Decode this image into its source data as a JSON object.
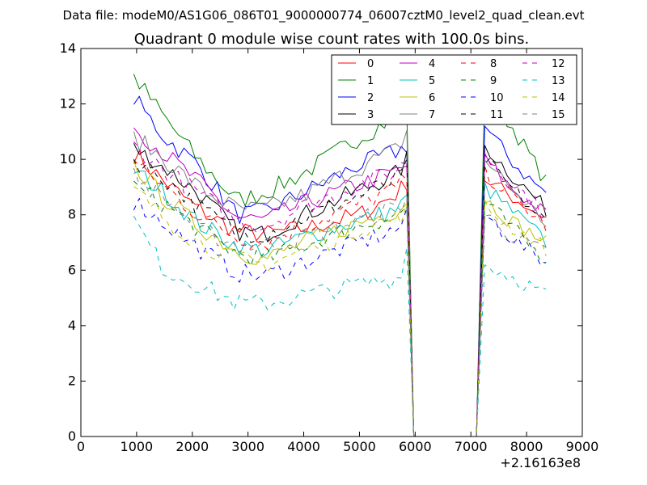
{
  "file_title": "Data file: modeM0/AS1G06_086T01_9000000774_06007cztM0_level2_quad_clean.evt",
  "chart_data": {
    "type": "line",
    "title": "Quadrant 0 module wise count rates with 100.0s bins.",
    "xlabel": "",
    "ylabel": "",
    "x_offset_label": "+2.16163e8",
    "xlim": [
      0,
      9000
    ],
    "ylim": [
      0,
      14
    ],
    "xticks": [
      0,
      1000,
      2000,
      3000,
      4000,
      5000,
      6000,
      7000,
      8000,
      9000
    ],
    "yticks": [
      0,
      2,
      4,
      6,
      8,
      10,
      12,
      14
    ],
    "gap": [
      6000,
      7100
    ],
    "segment1_x": [
      950,
      1050,
      1150,
      1250,
      1350,
      1450,
      1550,
      1650,
      1750,
      1850,
      1950,
      2050,
      2150,
      2250,
      2350,
      2450,
      2550,
      2650,
      2750,
      2850,
      2950,
      3050,
      3150,
      3250,
      3350,
      3450,
      3550,
      3650,
      3750,
      3850,
      3950,
      4050,
      4150,
      4250,
      4350,
      4450,
      4550,
      4650,
      4750,
      4850,
      4950,
      5050,
      5150,
      5250,
      5350,
      5450,
      5550,
      5650,
      5750,
      5850
    ],
    "segment2_x": [
      7250,
      7350,
      7450,
      7550,
      7650,
      7750,
      7850,
      7950,
      8050,
      8150,
      8250,
      8350
    ],
    "series": [
      {
        "name": "0",
        "color": "#ff0000",
        "dash": "solid",
        "anchors1": [
          [
            950,
            10.2
          ],
          [
            1500,
            9.2
          ],
          [
            2100,
            8.2
          ],
          [
            2800,
            7.4
          ],
          [
            3300,
            7.3
          ],
          [
            4000,
            7.5
          ],
          [
            5000,
            8.0
          ],
          [
            5700,
            8.8
          ],
          [
            5850,
            9.2
          ]
        ],
        "anchors2": [
          [
            7250,
            9.3
          ],
          [
            7700,
            8.7
          ],
          [
            8100,
            8.2
          ],
          [
            8350,
            7.9
          ]
        ]
      },
      {
        "name": "1",
        "color": "#008000",
        "dash": "solid",
        "anchors1": [
          [
            950,
            13.0
          ],
          [
            1500,
            11.5
          ],
          [
            2100,
            10.0
          ],
          [
            2800,
            8.5
          ],
          [
            3300,
            8.8
          ],
          [
            4000,
            9.5
          ],
          [
            5000,
            10.8
          ],
          [
            5700,
            11.6
          ],
          [
            5850,
            12.0
          ]
        ],
        "anchors2": [
          [
            7250,
            12.3
          ],
          [
            7700,
            11.3
          ],
          [
            8100,
            10.0
          ],
          [
            8350,
            9.2
          ]
        ]
      },
      {
        "name": "2",
        "color": "#0000ff",
        "dash": "solid",
        "anchors1": [
          [
            950,
            12.2
          ],
          [
            1500,
            10.8
          ],
          [
            2100,
            9.8
          ],
          [
            2800,
            8.0
          ],
          [
            3300,
            8.1
          ],
          [
            4000,
            8.8
          ],
          [
            5000,
            9.8
          ],
          [
            5700,
            10.3
          ],
          [
            5850,
            10.5
          ]
        ],
        "anchors2": [
          [
            7250,
            11.2
          ],
          [
            7700,
            10.0
          ],
          [
            8100,
            9.2
          ],
          [
            8350,
            8.8
          ]
        ]
      },
      {
        "name": "3",
        "color": "#000000",
        "dash": "solid",
        "anchors1": [
          [
            950,
            10.4
          ],
          [
            1500,
            9.7
          ],
          [
            2100,
            8.8
          ],
          [
            2800,
            7.4
          ],
          [
            3300,
            7.3
          ],
          [
            4000,
            8.0
          ],
          [
            5000,
            8.9
          ],
          [
            5700,
            9.5
          ],
          [
            5850,
            10.0
          ]
        ],
        "anchors2": [
          [
            7250,
            10.5
          ],
          [
            7700,
            9.5
          ],
          [
            8100,
            8.7
          ],
          [
            8350,
            8.2
          ]
        ]
      },
      {
        "name": "4",
        "color": "#bf00bf",
        "dash": "solid",
        "anchors1": [
          [
            950,
            11.2
          ],
          [
            1500,
            10.2
          ],
          [
            2100,
            9.2
          ],
          [
            2800,
            7.9
          ],
          [
            3300,
            7.8
          ],
          [
            4000,
            8.4
          ],
          [
            5000,
            9.1
          ],
          [
            5700,
            9.6
          ],
          [
            5850,
            9.8
          ]
        ],
        "anchors2": [
          [
            7250,
            10.0
          ],
          [
            7700,
            9.0
          ],
          [
            8100,
            8.4
          ],
          [
            8350,
            8.0
          ]
        ]
      },
      {
        "name": "5",
        "color": "#00bfbf",
        "dash": "solid",
        "anchors1": [
          [
            950,
            9.6
          ],
          [
            1500,
            8.8
          ],
          [
            2100,
            7.7
          ],
          [
            2800,
            6.9
          ],
          [
            3300,
            6.7
          ],
          [
            4000,
            7.2
          ],
          [
            5000,
            7.8
          ],
          [
            5700,
            8.2
          ],
          [
            5850,
            8.6
          ]
        ],
        "anchors2": [
          [
            7250,
            9.0
          ],
          [
            7700,
            8.2
          ],
          [
            8100,
            7.5
          ],
          [
            8350,
            7.0
          ]
        ]
      },
      {
        "name": "6",
        "color": "#bfbf00",
        "dash": "solid",
        "anchors1": [
          [
            950,
            9.8
          ],
          [
            1500,
            8.6
          ],
          [
            2100,
            7.6
          ],
          [
            2800,
            6.7
          ],
          [
            3300,
            6.4
          ],
          [
            4000,
            7.0
          ],
          [
            5000,
            7.7
          ],
          [
            5700,
            8.2
          ],
          [
            5850,
            8.5
          ]
        ],
        "anchors2": [
          [
            7250,
            8.6
          ],
          [
            7700,
            7.8
          ],
          [
            8100,
            7.3
          ],
          [
            8350,
            7.0
          ]
        ]
      },
      {
        "name": "7",
        "color": "#808080",
        "dash": "solid",
        "anchors1": [
          [
            950,
            10.8
          ],
          [
            1500,
            10.0
          ],
          [
            2100,
            9.0
          ],
          [
            2800,
            8.2
          ],
          [
            3300,
            8.2
          ],
          [
            4000,
            8.7
          ],
          [
            5000,
            9.7
          ],
          [
            5700,
            10.4
          ],
          [
            5850,
            11.0
          ]
        ],
        "anchors2": [
          [
            7250,
            10.0
          ],
          [
            7700,
            9.0
          ],
          [
            8100,
            8.2
          ],
          [
            8350,
            7.7
          ]
        ]
      },
      {
        "name": "8",
        "color": "#ff0000",
        "dash": "dashed",
        "anchors1": [
          [
            950,
            9.9
          ],
          [
            1500,
            9.0
          ],
          [
            2100,
            8.0
          ],
          [
            2800,
            7.2
          ],
          [
            3300,
            7.0
          ],
          [
            4000,
            7.6
          ],
          [
            5000,
            8.4
          ],
          [
            5700,
            9.0
          ],
          [
            5850,
            9.4
          ]
        ],
        "anchors2": [
          [
            7250,
            9.5
          ],
          [
            7700,
            8.7
          ],
          [
            8100,
            8.0
          ],
          [
            8350,
            7.6
          ]
        ]
      },
      {
        "name": "9",
        "color": "#008000",
        "dash": "dashed",
        "anchors1": [
          [
            950,
            9.0
          ],
          [
            1500,
            8.4
          ],
          [
            2100,
            7.5
          ],
          [
            2800,
            6.6
          ],
          [
            3300,
            6.4
          ],
          [
            4000,
            6.9
          ],
          [
            5000,
            7.6
          ],
          [
            5700,
            8.0
          ],
          [
            5850,
            8.3
          ]
        ],
        "anchors2": [
          [
            7250,
            8.5
          ],
          [
            7700,
            7.6
          ],
          [
            8100,
            6.8
          ],
          [
            8350,
            6.4
          ]
        ]
      },
      {
        "name": "10",
        "color": "#0000ff",
        "dash": "dashed",
        "anchors1": [
          [
            950,
            8.5
          ],
          [
            1500,
            7.7
          ],
          [
            2100,
            6.8
          ],
          [
            2800,
            5.9
          ],
          [
            3300,
            5.8
          ],
          [
            4000,
            6.3
          ],
          [
            5000,
            7.0
          ],
          [
            5700,
            7.5
          ],
          [
            5850,
            7.9
          ]
        ],
        "anchors2": [
          [
            7250,
            8.0
          ],
          [
            7700,
            7.2
          ],
          [
            8100,
            6.6
          ],
          [
            8350,
            6.3
          ]
        ]
      },
      {
        "name": "11",
        "color": "#000000",
        "dash": "dashed",
        "anchors1": [
          [
            950,
            10.0
          ],
          [
            1500,
            9.3
          ],
          [
            2100,
            8.3
          ],
          [
            2800,
            7.4
          ],
          [
            3300,
            7.3
          ],
          [
            4000,
            7.9
          ],
          [
            5000,
            8.7
          ],
          [
            5700,
            9.3
          ],
          [
            5850,
            9.7
          ]
        ],
        "anchors2": [
          [
            7250,
            10.0
          ],
          [
            7700,
            9.0
          ],
          [
            8100,
            8.2
          ],
          [
            8350,
            7.7
          ]
        ]
      },
      {
        "name": "12",
        "color": "#bf00bf",
        "dash": "dashed",
        "anchors1": [
          [
            950,
            10.5
          ],
          [
            1500,
            9.6
          ],
          [
            2100,
            8.8
          ],
          [
            2800,
            7.8
          ],
          [
            3300,
            7.6
          ],
          [
            4000,
            8.3
          ],
          [
            5000,
            9.1
          ],
          [
            5700,
            9.6
          ],
          [
            5850,
            10.0
          ]
        ],
        "anchors2": [
          [
            7250,
            10.2
          ],
          [
            7700,
            9.2
          ],
          [
            8100,
            8.5
          ],
          [
            8350,
            8.0
          ]
        ]
      },
      {
        "name": "13",
        "color": "#00bfbf",
        "dash": "dashed",
        "anchors1": [
          [
            950,
            7.8
          ],
          [
            1500,
            6.0
          ],
          [
            2100,
            5.5
          ],
          [
            2800,
            4.8
          ],
          [
            3300,
            4.8
          ],
          [
            4000,
            5.1
          ],
          [
            5000,
            5.5
          ],
          [
            5700,
            5.7
          ],
          [
            5850,
            6.8
          ]
        ],
        "anchors2": [
          [
            7250,
            6.2
          ],
          [
            7700,
            5.8
          ],
          [
            8100,
            5.4
          ],
          [
            8350,
            5.1
          ]
        ]
      },
      {
        "name": "14",
        "color": "#bfbf00",
        "dash": "dashed",
        "anchors1": [
          [
            950,
            8.9
          ],
          [
            1500,
            7.9
          ],
          [
            2100,
            7.0
          ],
          [
            2800,
            6.4
          ],
          [
            3300,
            6.2
          ],
          [
            4000,
            6.7
          ],
          [
            5000,
            7.5
          ],
          [
            5700,
            7.9
          ],
          [
            5850,
            8.2
          ]
        ],
        "anchors2": [
          [
            7250,
            8.3
          ],
          [
            7700,
            7.6
          ],
          [
            8100,
            7.1
          ],
          [
            8350,
            6.8
          ]
        ]
      },
      {
        "name": "15",
        "color": "#808080",
        "dash": "dashed",
        "anchors1": [
          [
            950,
            9.4
          ],
          [
            1500,
            8.6
          ],
          [
            2100,
            7.5
          ],
          [
            2800,
            6.9
          ],
          [
            3300,
            6.9
          ],
          [
            4000,
            7.2
          ],
          [
            5000,
            7.8
          ],
          [
            5700,
            8.3
          ],
          [
            5850,
            8.6
          ]
        ],
        "anchors2": [
          [
            7250,
            8.0
          ],
          [
            7700,
            7.3
          ],
          [
            8100,
            6.9
          ],
          [
            8350,
            6.6
          ]
        ]
      }
    ]
  }
}
